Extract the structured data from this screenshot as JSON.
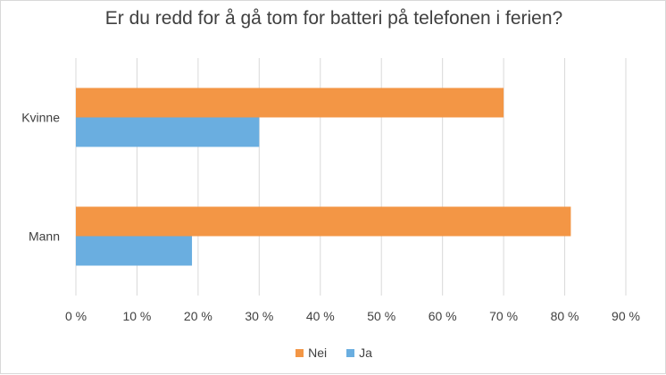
{
  "chart_data": {
    "type": "bar",
    "orientation": "horizontal",
    "title": "Er du redd for å gå tom for batteri på telefonen i ferien?",
    "categories": [
      "Kvinne",
      "Mann"
    ],
    "series": [
      {
        "name": "Nei",
        "values": [
          70,
          81
        ],
        "color": "#f39645"
      },
      {
        "name": "Ja",
        "values": [
          30,
          19
        ],
        "color": "#6aaee0"
      }
    ],
    "xlim": [
      0,
      90
    ],
    "ticks": [
      0,
      10,
      20,
      30,
      40,
      50,
      60,
      70,
      80,
      90
    ],
    "tick_labels": [
      "0 %",
      "10 %",
      "20 %",
      "30 %",
      "40 %",
      "50 %",
      "60 %",
      "70 %",
      "80 %",
      "90 %"
    ],
    "grid": true,
    "legend_position": "bottom",
    "colors": {
      "gridline": "#d9d9d9",
      "text": "#404040"
    }
  }
}
